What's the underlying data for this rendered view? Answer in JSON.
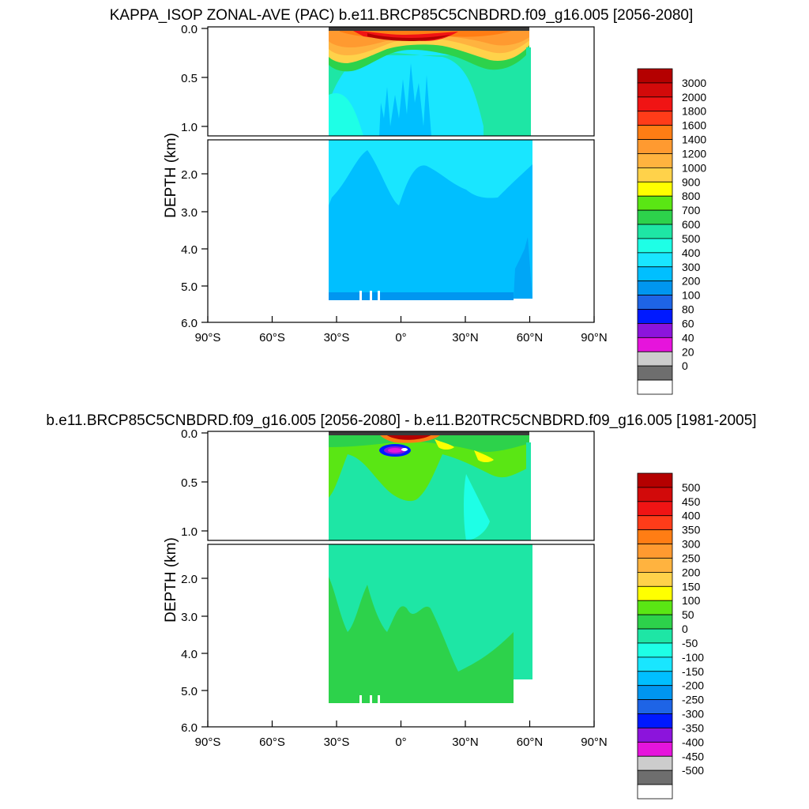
{
  "chart_data": [
    {
      "type": "heatmap",
      "title": "KAPPA_ISOP ZONAL-AVE (PAC) b.e11.BRCP85C5CNBDRD.f09_g16.005 [2056-2080]",
      "ylabel": "DEPTH (km)",
      "xlabel": "",
      "xlim": [
        -90,
        90
      ],
      "ylim": [
        0.0,
        6.0
      ],
      "upper_ticks": [
        "0.0",
        "0.5",
        "1.0"
      ],
      "lower_ticks": [
        "2.0",
        "3.0",
        "4.0",
        "5.0",
        "6.0"
      ],
      "x_ticks": [
        "90°S",
        "60°S",
        "30°S",
        "0°",
        "30°N",
        "60°N",
        "90°N"
      ],
      "legend": {
        "placement": "right",
        "levels": [
          "3000",
          "2000",
          "1800",
          "1600",
          "1400",
          "1200",
          "1000",
          "900",
          "800",
          "700",
          "600",
          "500",
          "400",
          "300",
          "200",
          "100",
          "80",
          "60",
          "40",
          "20",
          "0"
        ],
        "colors": [
          "#b40000",
          "#d20a0a",
          "#f01414",
          "#ff3c19",
          "#ff7d14",
          "#ff9a30",
          "#ffb33f",
          "#ffd24a",
          "#ffff00",
          "#5ae614",
          "#2dd24b",
          "#1ee6a5",
          "#1effe6",
          "#19e6ff",
          "#00bfff",
          "#0096f0",
          "#1e64e6",
          "#0019ff",
          "#8c14dc",
          "#e614dc",
          "#cccccc",
          "#6e6e6e",
          "#ffffff"
        ]
      },
      "field": {
        "lon_range": [
          -35,
          67
        ],
        "surface_band_max": 3000,
        "shallow_warm_bands": "orange/yellow lobes near surface between 30S and 60N",
        "interior_value": 300,
        "deep_value": 200
      }
    },
    {
      "type": "heatmap",
      "title": "b.e11.BRCP85C5CNBDRD.f09_g16.005 [2056-2080] - b.e11.B20TRC5CNBDRD.f09_g16.005 [1981-2005]",
      "ylabel": "DEPTH (km)",
      "xlabel": "",
      "xlim": [
        -90,
        90
      ],
      "ylim": [
        0.0,
        6.0
      ],
      "upper_ticks": [
        "0.0",
        "0.5",
        "1.0"
      ],
      "lower_ticks": [
        "2.0",
        "3.0",
        "4.0",
        "5.0",
        "6.0"
      ],
      "x_ticks": [
        "90°S",
        "60°S",
        "30°S",
        "0°",
        "30°N",
        "60°N",
        "90°N"
      ],
      "legend": {
        "placement": "right",
        "levels": [
          "500",
          "450",
          "400",
          "350",
          "300",
          "250",
          "200",
          "150",
          "100",
          "50",
          "0",
          "-50",
          "-100",
          "-150",
          "-200",
          "-250",
          "-300",
          "-350",
          "-400",
          "-450",
          "-500"
        ],
        "colors": [
          "#b40000",
          "#d20a0a",
          "#f01414",
          "#ff3c19",
          "#ff7d14",
          "#ff9a30",
          "#ffb33f",
          "#ffd24a",
          "#ffff00",
          "#5ae614",
          "#2dd24b",
          "#1ee6a5",
          "#1effe6",
          "#19e6ff",
          "#00bfff",
          "#0096f0",
          "#1e64e6",
          "#0019ff",
          "#8c14dc",
          "#e614dc",
          "#cccccc",
          "#6e6e6e",
          "#ffffff"
        ]
      },
      "field": {
        "lon_range": [
          -35,
          67
        ],
        "interior_value": -50,
        "surface_anomaly_min": -500,
        "surface_anomaly_max": 500
      }
    }
  ]
}
